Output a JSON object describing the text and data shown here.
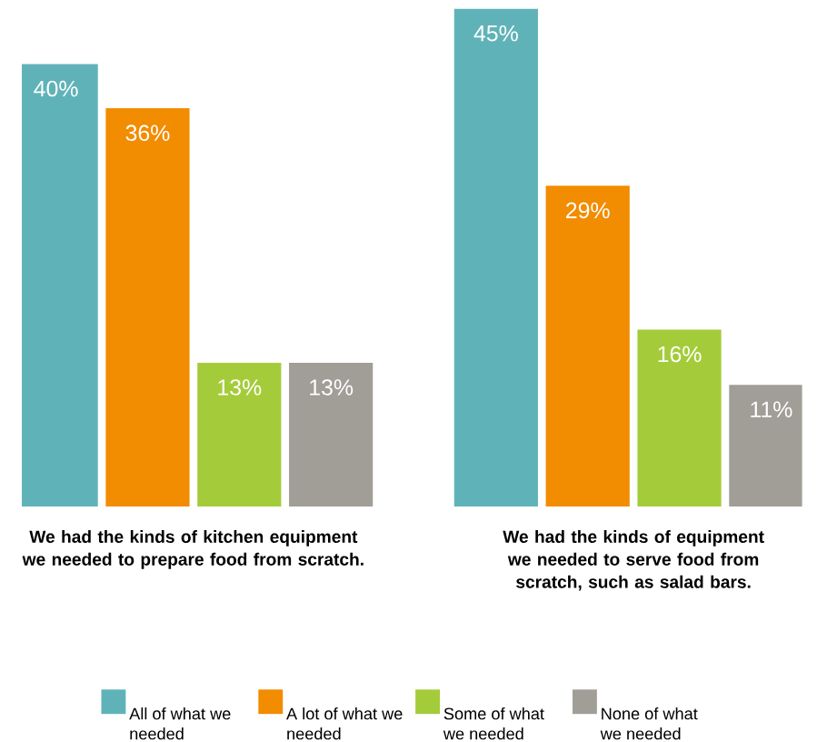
{
  "chart_data": {
    "type": "bar",
    "categories": [
      "We had the kinds of kitchen equipment we needed to prepare food from scratch.",
      "We had the kinds of equipment we needed to serve food from scratch, such as salad bars."
    ],
    "series": [
      {
        "name": "All of what we needed",
        "color": "#5fb3b8",
        "values": [
          40,
          45
        ],
        "value_labels": [
          "40%",
          "45%"
        ]
      },
      {
        "name": "A lot of what we needed",
        "color": "#f28c00",
        "values": [
          36,
          29
        ],
        "value_labels": [
          "36%",
          "29%"
        ]
      },
      {
        "name": "Some of what we needed",
        "color": "#a4cc3a",
        "values": [
          13,
          16
        ],
        "value_labels": [
          "13%",
          "16%"
        ]
      },
      {
        "name": "None of what we needed",
        "color": "#a09e97",
        "values": [
          13,
          11
        ],
        "value_labels": [
          "13%",
          "11%"
        ]
      }
    ],
    "legend": "bottom",
    "tick_labels": "x"
  }
}
